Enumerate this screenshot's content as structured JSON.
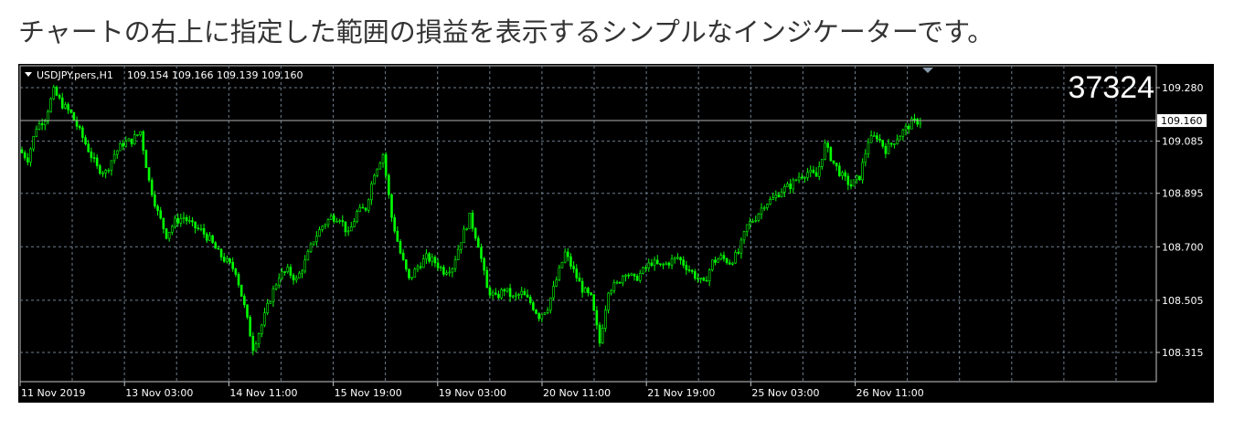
{
  "page": {
    "heading": "チャートの右上に指定した範囲の損益を表示するシンプルなインジケーターです。"
  },
  "chart_data": {
    "type": "candlestick",
    "symbol_header": "USDJPY.pers,H1",
    "ohlc_header": "109.154 109.166 109.139 109.160",
    "indicator_value": "37324",
    "current_price": 109.16,
    "current_price_label": "109.160",
    "y_ticks": [
      "109.280",
      "109.085",
      "108.895",
      "108.700",
      "108.505",
      "108.315"
    ],
    "x_ticks": [
      "11 Nov 2019",
      "13 Nov 03:00",
      "14 Nov 11:00",
      "15 Nov 19:00",
      "19 Nov 03:00",
      "20 Nov 11:00",
      "21 Nov 19:00",
      "25 Nov 03:00",
      "26 Nov 11:00"
    ],
    "ylim": [
      108.24,
      109.33
    ],
    "grid": true,
    "colors": {
      "candle": "#00ff00",
      "background": "#000000",
      "grid": "#6f7f8f",
      "text": "#ffffff"
    },
    "closes": [
      109.054,
      109.021,
      109.136,
      109.169,
      109.267,
      109.218,
      109.185,
      109.12,
      109.054,
      108.988,
      108.972,
      109.038,
      109.077,
      109.087,
      109.12,
      108.939,
      108.825,
      108.743,
      108.792,
      108.808,
      108.776,
      108.759,
      108.726,
      108.677,
      108.644,
      108.612,
      108.481,
      108.333,
      108.415,
      108.513,
      108.595,
      108.612,
      108.579,
      108.644,
      108.726,
      108.776,
      108.808,
      108.808,
      108.743,
      108.825,
      108.841,
      108.972,
      109.038,
      108.808,
      108.677,
      108.579,
      108.628,
      108.661,
      108.644,
      108.612,
      108.628,
      108.726,
      108.808,
      108.71,
      108.546,
      108.513,
      108.546,
      108.513,
      108.53,
      108.497,
      108.448,
      108.481,
      108.579,
      108.677,
      108.612,
      108.546,
      108.513,
      108.35,
      108.546,
      108.563,
      108.612,
      108.579,
      108.612,
      108.644,
      108.628,
      108.644,
      108.661,
      108.628,
      108.595,
      108.563,
      108.644,
      108.661,
      108.644,
      108.677,
      108.776,
      108.808,
      108.857,
      108.874,
      108.907,
      108.923,
      108.956,
      108.972,
      108.956,
      109.07,
      109.005,
      108.956,
      108.923,
      108.956,
      109.087,
      109.103,
      109.054,
      109.087,
      109.12,
      109.152,
      109.16
    ]
  }
}
